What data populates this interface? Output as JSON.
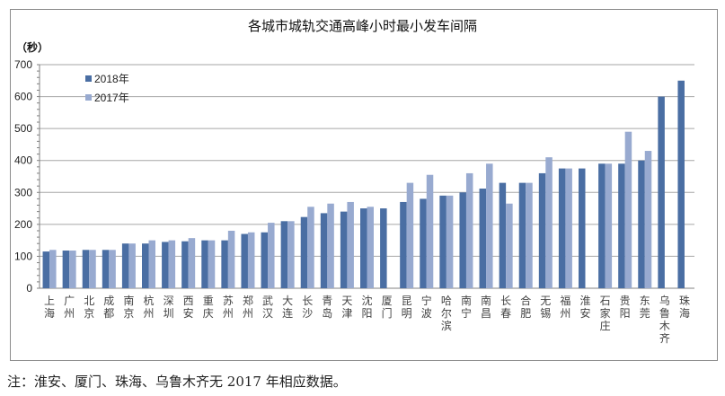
{
  "title": "各城市城轨交通高峰小时最小发车间隔",
  "unit_label": "（秒）",
  "note": "注：淮安、厦门、珠海、乌鲁木齐无 2017 年相应数据。",
  "colors": {
    "s2018": "#4a6ea3",
    "s2017": "#98aad0",
    "grid": "#a6a6a6",
    "axis": "#808080"
  },
  "chart_data": {
    "type": "bar",
    "title": "各城市城轨交通高峰小时最小发车间隔",
    "xlabel": "",
    "ylabel": "（秒）",
    "ylim": [
      0,
      700
    ],
    "yticks": [
      0,
      100,
      200,
      300,
      400,
      500,
      600,
      700
    ],
    "grid": true,
    "legend_position": "top-left inside",
    "categories": [
      "上海",
      "广州",
      "北京",
      "成都",
      "南京",
      "杭州",
      "深圳",
      "西安",
      "重庆",
      "苏州",
      "郑州",
      "武汉",
      "大连",
      "长沙",
      "青岛",
      "天津",
      "沈阳",
      "厦门",
      "昆明",
      "宁波",
      "哈尔滨",
      "南宁",
      "南昌",
      "长春",
      "合肥",
      "无锡",
      "福州",
      "淮安",
      "石家庄",
      "贵阳",
      "东莞",
      "乌鲁木齐",
      "珠海"
    ],
    "series": [
      {
        "name": "2018年",
        "values": [
          115,
          118,
          120,
          120,
          140,
          140,
          145,
          147,
          150,
          150,
          170,
          175,
          210,
          223,
          235,
          240,
          250,
          250,
          270,
          280,
          290,
          300,
          312,
          330,
          330,
          360,
          375,
          375,
          390,
          390,
          400,
          600,
          650
        ]
      },
      {
        "name": "2017年",
        "values": [
          120,
          118,
          120,
          120,
          140,
          150,
          150,
          157,
          150,
          180,
          175,
          205,
          210,
          255,
          265,
          270,
          255,
          null,
          330,
          355,
          290,
          360,
          390,
          265,
          330,
          410,
          375,
          null,
          390,
          490,
          430,
          null,
          null
        ]
      }
    ]
  },
  "legend": [
    {
      "label": "2018年"
    },
    {
      "label": "2017年"
    }
  ]
}
